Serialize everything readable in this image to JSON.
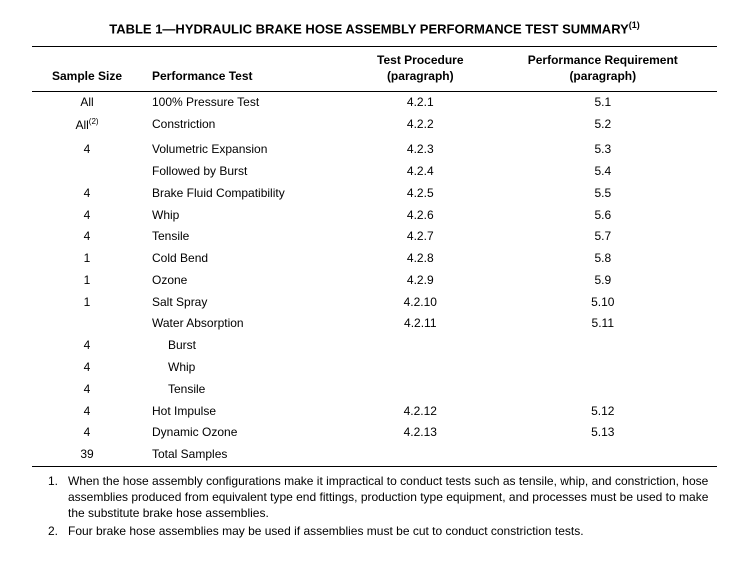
{
  "title": "TABLE 1—HYDRAULIC BRAKE HOSE ASSEMBLY PERFORMANCE TEST SUMMARY",
  "title_sup": "(1)",
  "headers": {
    "c1": "Sample Size",
    "c2": "Performance Test",
    "c3_l1": "Test Procedure",
    "c3_l2": "(paragraph)",
    "c4_l1": "Performance Requirement",
    "c4_l2": "(paragraph)"
  },
  "rows": [
    {
      "c1": "All",
      "sup": "",
      "c2": "100% Pressure Test",
      "c3": "4.2.1",
      "c4": "5.1",
      "indent": false,
      "spacer": false
    },
    {
      "c1": "All",
      "sup": "(2)",
      "c2": "Constriction",
      "c3": "4.2.2",
      "c4": "5.2",
      "indent": false,
      "spacer": false
    },
    {
      "c1": "4",
      "sup": "",
      "c2": "Volumetric Expansion",
      "c3": "4.2.3",
      "c4": "5.3",
      "indent": false,
      "spacer": true
    },
    {
      "c1": "",
      "sup": "",
      "c2": "Followed by Burst",
      "c3": "4.2.4",
      "c4": "5.4",
      "indent": false,
      "spacer": false
    },
    {
      "c1": "4",
      "sup": "",
      "c2": "Brake Fluid Compatibility",
      "c3": "4.2.5",
      "c4": "5.5",
      "indent": false,
      "spacer": false
    },
    {
      "c1": "4",
      "sup": "",
      "c2": "Whip",
      "c3": "4.2.6",
      "c4": "5.6",
      "indent": false,
      "spacer": false
    },
    {
      "c1": "4",
      "sup": "",
      "c2": "Tensile",
      "c3": "4.2.7",
      "c4": "5.7",
      "indent": false,
      "spacer": false
    },
    {
      "c1": "1",
      "sup": "",
      "c2": "Cold Bend",
      "c3": "4.2.8",
      "c4": "5.8",
      "indent": false,
      "spacer": false
    },
    {
      "c1": "1",
      "sup": "",
      "c2": "Ozone",
      "c3": "4.2.9",
      "c4": "5.9",
      "indent": false,
      "spacer": false
    },
    {
      "c1": "1",
      "sup": "",
      "c2": "Salt Spray",
      "c3": "4.2.10",
      "c4": "5.10",
      "indent": false,
      "spacer": false
    },
    {
      "c1": "",
      "sup": "",
      "c2": "Water Absorption",
      "c3": "4.2.11",
      "c4": "5.11",
      "indent": false,
      "spacer": false
    },
    {
      "c1": "4",
      "sup": "",
      "c2": "Burst",
      "c3": "",
      "c4": "",
      "indent": true,
      "spacer": false
    },
    {
      "c1": "4",
      "sup": "",
      "c2": "Whip",
      "c3": "",
      "c4": "",
      "indent": true,
      "spacer": false
    },
    {
      "c1": "4",
      "sup": "",
      "c2": "Tensile",
      "c3": "",
      "c4": "",
      "indent": true,
      "spacer": false
    },
    {
      "c1": "4",
      "sup": "",
      "c2": "Hot Impulse",
      "c3": "4.2.12",
      "c4": "5.12",
      "indent": false,
      "spacer": false
    },
    {
      "c1": "4",
      "sup": "",
      "c2": "Dynamic Ozone",
      "c3": "4.2.13",
      "c4": "5.13",
      "indent": false,
      "spacer": false
    },
    {
      "c1": "39",
      "sup": "",
      "c2": "Total Samples",
      "c3": "",
      "c4": "",
      "indent": false,
      "spacer": false
    }
  ],
  "footnotes": [
    {
      "num": "1.",
      "text": "When the hose assembly configurations make it impractical to conduct tests such as tensile, whip, and constriction, hose assemblies produced from equivalent type end fittings, production type equipment, and processes must be used to make the substitute brake hose assemblies."
    },
    {
      "num": "2.",
      "text": "Four brake hose assemblies may be used if assemblies must be cut to conduct constriction tests."
    }
  ],
  "colors": {
    "text": "#000000",
    "background": "#ffffff",
    "rule": "#000000"
  }
}
